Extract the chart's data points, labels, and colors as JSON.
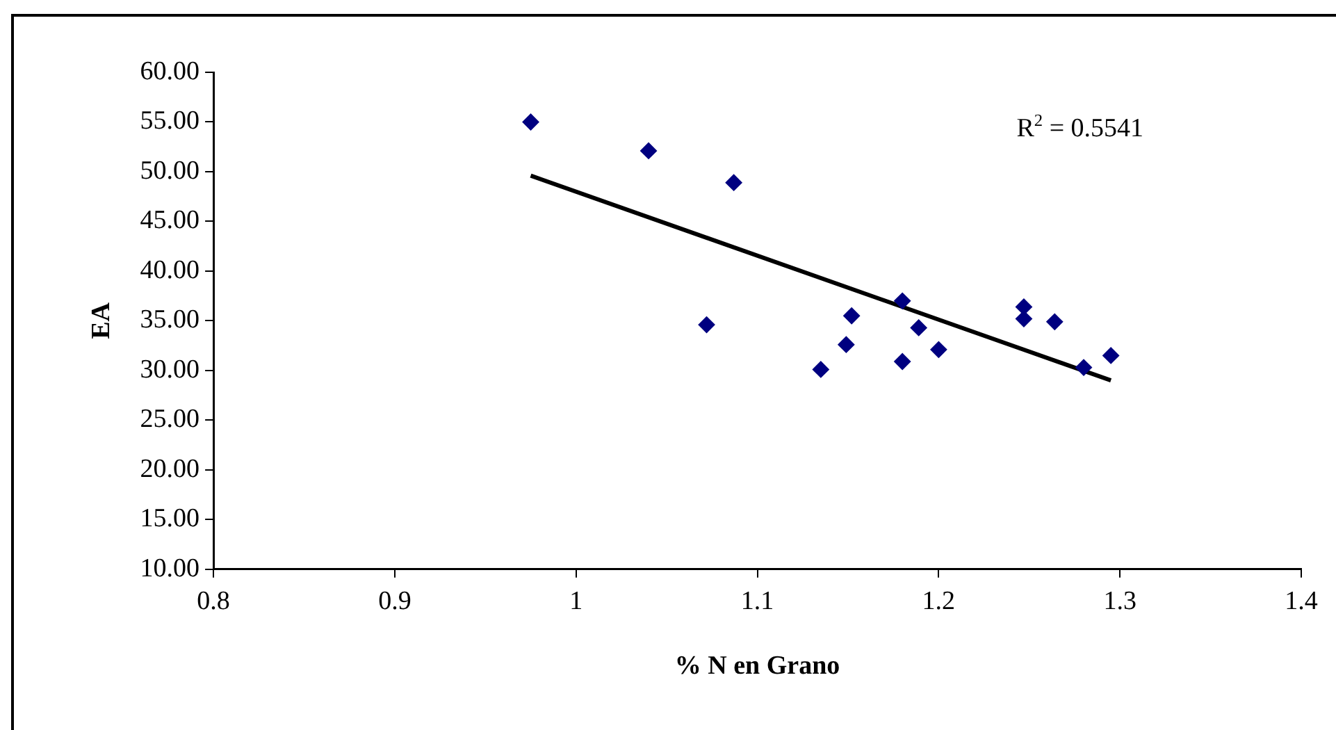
{
  "chart_data": {
    "type": "scatter",
    "xlabel": "% N en Grano",
    "ylabel": "EA",
    "annotations": [
      "R$^{2}$ = 0.5541"
    ],
    "series": [
      {
        "type": "scatter",
        "marker": "diamond",
        "color": "#000080",
        "x": [
          0.975,
          1.04,
          1.087,
          1.072,
          1.135,
          1.149,
          1.152,
          1.18,
          1.18,
          1.189,
          1.2,
          1.247,
          1.247,
          1.264,
          1.28,
          1.295
        ],
        "values": [
          55.0,
          52.1,
          48.9,
          34.6,
          30.1,
          32.6,
          35.5,
          37.0,
          30.9,
          34.3,
          32.1,
          36.4,
          35.2,
          34.9,
          30.3,
          31.5
        ]
      },
      {
        "type": "line",
        "marker": "none",
        "color": "#000000",
        "x": [
          0.975,
          1.295
        ],
        "values": [
          49.6,
          29.0
        ]
      }
    ],
    "xlim": [
      0.8,
      1.4
    ],
    "xticks": [
      0.8,
      0.9,
      1,
      1.1,
      1.2,
      1.3,
      1.4
    ],
    "ylim": [
      10,
      60
    ],
    "yticks": [
      {
        "value": 10,
        "label": "10.00"
      },
      {
        "value": 15,
        "label": "15.00"
      },
      {
        "value": 20,
        "label": "20.00"
      },
      {
        "value": 25,
        "label": "25.00"
      },
      {
        "value": 30,
        "label": "30.00"
      },
      {
        "value": 35,
        "label": "35.00"
      },
      {
        "value": 40,
        "label": "40.00"
      },
      {
        "value": 45,
        "label": "45.00"
      },
      {
        "value": 50,
        "label": "50.00"
      },
      {
        "value": 55,
        "label": "55.00"
      },
      {
        "value": 60,
        "label": "60.00"
      }
    ],
    "grid": false,
    "legend": false,
    "line_style": "solid"
  }
}
